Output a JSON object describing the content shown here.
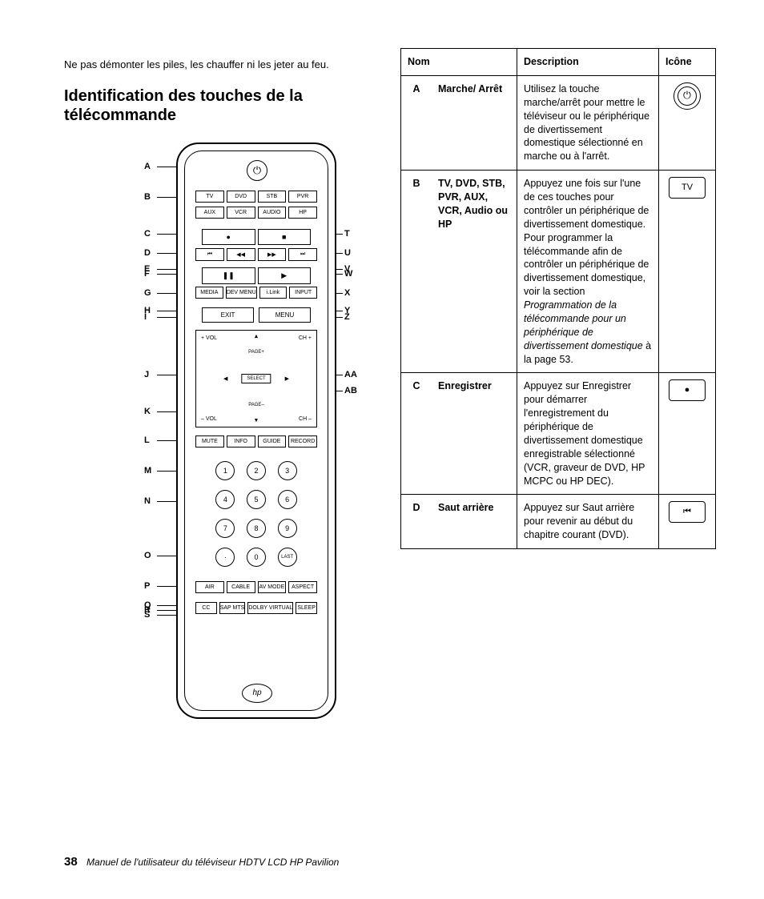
{
  "intro": "Ne pas démonter les piles, les chauffer ni les jeter au feu.",
  "heading": "Identification des touches de la télécommande",
  "remote": {
    "power_symbol": "⏻",
    "row_b1": [
      "TV",
      "DVD",
      "STB",
      "PVR"
    ],
    "row_b2": [
      "AUX",
      "VCR",
      "AUDIO",
      "HP"
    ],
    "row_c": [
      "●",
      "■"
    ],
    "row_d": [
      "⏮",
      "◀◀",
      "▶▶",
      "⏭"
    ],
    "row_ef": [
      "❚❚",
      "▶"
    ],
    "row_g": [
      "MEDIA",
      "DEV MENU",
      "i.Link",
      "INPUT"
    ],
    "row_hi": [
      "EXIT",
      "MENU"
    ],
    "nav": {
      "vol_up": "+ VOL",
      "vol_dn": "– VOL",
      "ch_up": "CH +",
      "ch_dn": "CH –",
      "page_up": "PAGE+",
      "page_dn": "PAGE–",
      "select": "SELECT",
      "up": "▲",
      "down": "▼",
      "left": "◀",
      "right": "▶"
    },
    "row_l": [
      "MUTE",
      "INFO",
      "GUIDE",
      "RECORD"
    ],
    "nums": [
      [
        "1",
        "2",
        "3"
      ],
      [
        "4",
        "5",
        "6"
      ],
      [
        "7",
        "8",
        "9"
      ],
      [
        "·",
        "0",
        "LAST"
      ]
    ],
    "row_p": [
      "AIR",
      "CABLE",
      "AV MODE",
      "ASPECT"
    ],
    "row_qrs": [
      "CC",
      "SAP MTS",
      "DOLBY VIRTUAL",
      "SLEEP"
    ],
    "logo": "hp"
  },
  "callouts_left": [
    "A",
    "B",
    "C",
    "D",
    "E",
    "F",
    "G",
    "H",
    "I",
    "J",
    "K",
    "L",
    "M",
    "N",
    "O",
    "P",
    "Q",
    "R",
    "S"
  ],
  "callouts_right": [
    "T",
    "U",
    "V",
    "W",
    "X",
    "Y",
    "Z",
    "AA",
    "AB"
  ],
  "table": {
    "headers": {
      "nom": "Nom",
      "desc": "Description",
      "icon": "Icône"
    },
    "rows": [
      {
        "letter": "A",
        "nom": "Marche/ Arrêt",
        "desc": "Utilisez la touche marche/arrêt pour mettre le téléviseur ou le périphérique de divertissement domestique sélectionné en marche ou à l'arrêt.",
        "icon_type": "power"
      },
      {
        "letter": "B",
        "nom": "TV, DVD, STB, PVR, AUX, VCR, Audio ou HP",
        "desc_html": "Appuyez une fois sur l'une de ces touches pour contrôler un périphérique de divertissement domestique. Pour programmer la télécommande afin de contrôler un périphérique de divertissement domestique, voir la section <span class=\"italic\">Programmation de la télécommande pour un périphérique de divertissement domestique</span> à la page 53.",
        "icon_type": "tv",
        "icon_text": "TV"
      },
      {
        "letter": "C",
        "nom": "Enregistrer",
        "desc": "Appuyez sur Enregistrer pour démarrer l'enregistrement du périphérique de divertissement domestique enregistrable sélectionné (VCR, graveur de DVD, HP MCPC ou HP DEC).",
        "icon_type": "record"
      },
      {
        "letter": "D",
        "nom": "Saut arrière",
        "desc": "Appuyez sur Saut arrière pour revenir au début du chapitre courant (DVD).",
        "icon_type": "skipback"
      }
    ]
  },
  "footer": {
    "page": "38",
    "title": "Manuel de l'utilisateur du téléviseur HDTV LCD HP Pavilion"
  }
}
